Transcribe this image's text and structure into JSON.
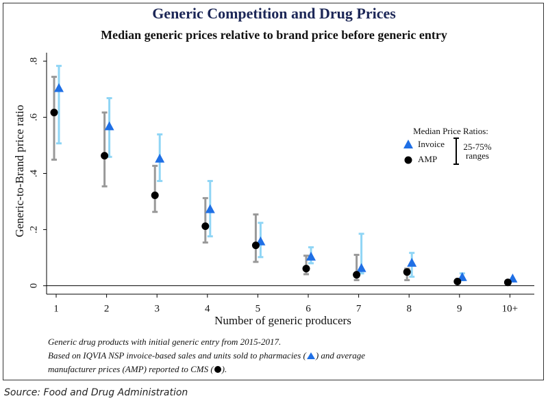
{
  "chart_data": {
    "type": "range-dot",
    "title": "Generic Competition and Drug Prices",
    "subtitle": "Median generic prices relative to brand price before generic entry",
    "xlabel": "Number of generic producers",
    "ylabel": "Generic-to-Brand price ratio",
    "categories": [
      "1",
      "2",
      "3",
      "4",
      "5",
      "6",
      "7",
      "8",
      "9",
      "10+"
    ],
    "ylim": [
      -0.03,
      0.83
    ],
    "yticks": [
      {
        "value": 0.8,
        "label": ".8"
      },
      {
        "value": 0.6,
        "label": ".6"
      },
      {
        "value": 0.4,
        "label": ".4"
      },
      {
        "value": 0.2,
        "label": ".2"
      },
      0
    ],
    "legend_title": "Median Price Ratios:",
    "range_label": [
      "25-75%",
      "ranges"
    ],
    "series": [
      {
        "name": "Invoice",
        "color": "#1f6fe5",
        "range_color": "#8fd5f5",
        "marker": "triangle",
        "values": [
          0.702,
          0.566,
          0.451,
          0.271,
          0.156,
          0.102,
          0.061,
          0.08,
          0.029,
          0.024
        ],
        "low": [
          0.507,
          0.459,
          0.373,
          0.176,
          0.102,
          0.08,
          0.044,
          0.032,
          0.02,
          null
        ],
        "high": [
          0.783,
          0.668,
          0.539,
          0.373,
          0.224,
          0.137,
          0.185,
          0.117,
          0.044,
          null
        ]
      },
      {
        "name": "AMP",
        "color": "#000000",
        "range_color": "#999999",
        "marker": "circle",
        "values": [
          0.617,
          0.463,
          0.322,
          0.212,
          0.144,
          0.061,
          0.039,
          0.049,
          0.015,
          0.012
        ],
        "low": [
          0.449,
          0.354,
          0.263,
          0.154,
          0.085,
          0.041,
          0.02,
          0.02,
          null,
          null
        ],
        "high": [
          0.744,
          0.617,
          0.427,
          0.312,
          0.254,
          0.107,
          0.11,
          0.061,
          null,
          null
        ]
      }
    ],
    "notes": [
      "Generic drug products with initial generic entry from 2015-2017.",
      "Based on IQVIA NSP invoice-based sales and units sold to pharmacies (",
      ") and average",
      "manufacturer prices (AMP) reported to CMS (",
      ")."
    ],
    "source": "Source: Food and Drug Administration"
  }
}
